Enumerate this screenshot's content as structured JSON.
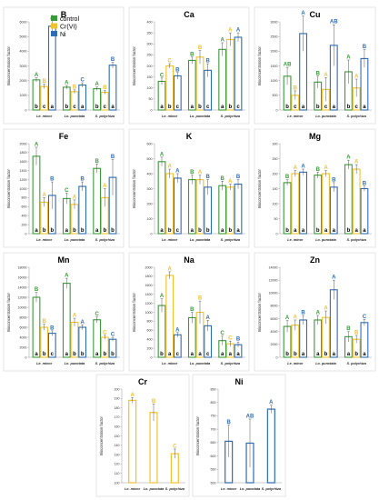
{
  "colors": {
    "control": "#3a9a3a",
    "cr": "#f2c12e",
    "ni": "#2e6db4"
  },
  "legend": [
    "control",
    "Cr(VI)",
    "Ni"
  ],
  "ylabel": "Bioconcentration factor",
  "categories": [
    "Le. minor",
    "Lo. punctata",
    "S. polyrhiza"
  ],
  "chart_data": [
    {
      "type": "bar",
      "title": "B",
      "ylim": [
        0,
        6000
      ],
      "yticks": [
        0,
        1000,
        2000,
        3000,
        4000,
        5000,
        6000
      ],
      "series": [
        {
          "name": "control",
          "values": [
            2050,
            1550,
            1450
          ],
          "errors": [
            150,
            120,
            120
          ],
          "labels": [
            "A",
            "A",
            "A"
          ],
          "base_labels": [
            "b",
            "b",
            "b"
          ]
        },
        {
          "name": "Cr(VI)",
          "values": [
            1600,
            1250,
            1200
          ],
          "errors": [
            150,
            120,
            120
          ],
          "labels": [
            "B",
            "B",
            "B"
          ],
          "base_labels": [
            "c",
            "c",
            "c"
          ]
        },
        {
          "name": "Ni",
          "values": [
            5700,
            1700,
            3050
          ],
          "errors": [
            400,
            150,
            200
          ],
          "labels": [
            "A",
            "C",
            "B"
          ],
          "base_labels": [
            "a",
            "a",
            "a"
          ]
        }
      ]
    },
    {
      "type": "bar",
      "title": "Ca",
      "ylim": [
        0,
        400
      ],
      "yticks": [
        0,
        50,
        100,
        150,
        200,
        250,
        300,
        350,
        400
      ],
      "series": [
        {
          "name": "control",
          "values": [
            130,
            225,
            275
          ],
          "errors": [
            15,
            15,
            30
          ],
          "labels": [
            "C",
            "B",
            "A"
          ],
          "base_labels": [
            "a",
            "a",
            "a"
          ]
        },
        {
          "name": "Cr(VI)",
          "values": [
            200,
            240,
            320
          ],
          "errors": [
            10,
            30,
            30
          ],
          "labels": [
            "C",
            "B",
            "A"
          ],
          "base_labels": [
            "b",
            "b",
            "b"
          ]
        },
        {
          "name": "Ni",
          "values": [
            155,
            180,
            330
          ],
          "errors": [
            15,
            30,
            20
          ],
          "labels": [
            "B",
            "B",
            "A"
          ],
          "base_labels": [
            "c",
            "c",
            "c"
          ]
        }
      ]
    },
    {
      "type": "bar",
      "title": "Cu",
      "ylim": [
        0,
        3000
      ],
      "yticks": [
        0,
        500,
        1000,
        1500,
        2000,
        2500,
        3000
      ],
      "series": [
        {
          "name": "control",
          "values": [
            1150,
            950,
            1300
          ],
          "errors": [
            300,
            200,
            400
          ],
          "labels": [
            "AB",
            "B",
            "A"
          ],
          "base_labels": [
            "b",
            "b",
            "b"
          ]
        },
        {
          "name": "Cr(VI)",
          "values": [
            500,
            700,
            750
          ],
          "errors": [
            150,
            400,
            300
          ],
          "labels": [
            "B",
            "A",
            "A"
          ],
          "base_labels": [
            "c",
            "c",
            "c"
          ]
        },
        {
          "name": "Ni",
          "values": [
            2600,
            2200,
            1750
          ],
          "errors": [
            600,
            700,
            300
          ],
          "labels": [
            "A",
            "AB",
            "B"
          ],
          "base_labels": [
            "a",
            "a",
            "a"
          ]
        }
      ]
    },
    {
      "type": "bar",
      "title": "Fe",
      "ylim": [
        0,
        2000
      ],
      "yticks": [
        0,
        200,
        400,
        600,
        800,
        1000,
        1200,
        1400,
        1600,
        1800,
        2000
      ],
      "series": [
        {
          "name": "control",
          "values": [
            1720,
            780,
            1450
          ],
          "errors": [
            200,
            120,
            100
          ],
          "labels": [
            "A",
            "C",
            "B"
          ],
          "base_labels": [
            "a",
            "a",
            "a"
          ]
        },
        {
          "name": "Cr(VI)",
          "values": [
            700,
            650,
            800
          ],
          "errors": [
            100,
            100,
            200
          ],
          "labels": [
            "A",
            "A",
            "A"
          ],
          "base_labels": [
            "b",
            "b",
            "b"
          ]
        },
        {
          "name": "Ni",
          "values": [
            850,
            1050,
            1250
          ],
          "errors": [
            300,
            100,
            400
          ],
          "labels": [
            "B",
            "B",
            "B"
          ],
          "base_labels": [
            "b",
            "b",
            "b"
          ]
        }
      ]
    },
    {
      "type": "bar",
      "title": "K",
      "ylim": [
        0,
        600
      ],
      "yticks": [
        0,
        100,
        200,
        300,
        400,
        500,
        600
      ],
      "series": [
        {
          "name": "control",
          "values": [
            480,
            360,
            320
          ],
          "errors": [
            30,
            30,
            30
          ],
          "labels": [
            "A",
            "B",
            "B"
          ],
          "base_labels": [
            "a",
            "a",
            "a"
          ]
        },
        {
          "name": "Cr(VI)",
          "values": [
            400,
            360,
            310
          ],
          "errors": [
            30,
            30,
            20
          ],
          "labels": [
            "A",
            "A",
            "A"
          ],
          "base_labels": [
            "b",
            "b",
            "b"
          ]
        },
        {
          "name": "Ni",
          "values": [
            370,
            310,
            330
          ],
          "errors": [
            30,
            50,
            30
          ],
          "labels": [
            "A",
            "B",
            "B"
          ],
          "base_labels": [
            "c",
            "b",
            "a"
          ]
        }
      ]
    },
    {
      "type": "bar",
      "title": "Mg",
      "ylim": [
        0,
        300
      ],
      "yticks": [
        0,
        50,
        100,
        150,
        200,
        250,
        300
      ],
      "series": [
        {
          "name": "control",
          "values": [
            170,
            195,
            230
          ],
          "errors": [
            10,
            10,
            15
          ],
          "labels": [
            "B",
            "B",
            "A"
          ],
          "base_labels": [
            "b",
            "b",
            "b"
          ]
        },
        {
          "name": "Cr(VI)",
          "values": [
            200,
            200,
            215
          ],
          "errors": [
            10,
            10,
            15
          ],
          "labels": [
            "A",
            "A",
            "A"
          ],
          "base_labels": [
            "a",
            "a",
            "a"
          ]
        },
        {
          "name": "Ni",
          "values": [
            205,
            155,
            150
          ],
          "errors": [
            10,
            15,
            8
          ],
          "labels": [
            "A",
            "B",
            "B"
          ],
          "base_labels": [
            "a",
            "a",
            "a"
          ]
        }
      ]
    },
    {
      "type": "bar",
      "title": "Mn",
      "ylim": [
        0,
        18000
      ],
      "yticks": [
        0,
        2000,
        4000,
        6000,
        8000,
        10000,
        12000,
        14000,
        16000,
        18000
      ],
      "series": [
        {
          "name": "control",
          "values": [
            12000,
            14800,
            7500
          ],
          "errors": [
            1000,
            1000,
            600
          ],
          "labels": [
            "B",
            "A",
            "C"
          ],
          "base_labels": [
            "a",
            "a",
            "a"
          ]
        },
        {
          "name": "Cr(VI)",
          "values": [
            6000,
            7000,
            4000
          ],
          "errors": [
            600,
            800,
            400
          ],
          "labels": [
            "B",
            "A",
            "C"
          ],
          "base_labels": [
            "b",
            "b",
            "b"
          ]
        },
        {
          "name": "Ni",
          "values": [
            4800,
            6000,
            3600
          ],
          "errors": [
            500,
            500,
            400
          ],
          "labels": [
            "B",
            "A",
            "C"
          ],
          "base_labels": [
            "c",
            "b",
            "b"
          ]
        }
      ]
    },
    {
      "type": "bar",
      "title": "Na",
      "ylim": [
        0,
        2000
      ],
      "yticks": [
        0,
        200,
        400,
        600,
        800,
        1000,
        1200,
        1400,
        1600,
        1800,
        2000
      ],
      "series": [
        {
          "name": "control",
          "values": [
            1150,
            880,
            370
          ],
          "errors": [
            150,
            120,
            100
          ],
          "labels": [
            "A",
            "B",
            "C"
          ],
          "base_labels": [
            "b",
            "a",
            "a"
          ]
        },
        {
          "name": "Cr(VI)",
          "values": [
            1820,
            1000,
            300
          ],
          "errors": [
            80,
            250,
            60
          ],
          "labels": [
            "A",
            "B",
            "C"
          ],
          "base_labels": [
            "a",
            "a",
            "a"
          ]
        },
        {
          "name": "Ni",
          "values": [
            500,
            700,
            280
          ],
          "errors": [
            50,
            120,
            60
          ],
          "labels": [
            "A",
            "A",
            "B"
          ],
          "base_labels": [
            "c",
            "c",
            "a"
          ]
        }
      ]
    },
    {
      "type": "bar",
      "title": "Zn",
      "ylim": [
        0,
        14000
      ],
      "yticks": [
        0,
        2000,
        4000,
        6000,
        8000,
        10000,
        12000,
        14000
      ],
      "series": [
        {
          "name": "control",
          "values": [
            4800,
            5800,
            3200
          ],
          "errors": [
            900,
            700,
            800
          ],
          "labels": [
            "A",
            "A",
            "B"
          ],
          "base_labels": [
            "b",
            "a",
            "a"
          ]
        },
        {
          "name": "Cr(VI)",
          "values": [
            5000,
            6200,
            2800
          ],
          "errors": [
            800,
            1000,
            600
          ],
          "labels": [
            "A",
            "A",
            "B"
          ],
          "base_labels": [
            "b",
            "b",
            "b"
          ]
        },
        {
          "name": "Ni",
          "values": [
            5800,
            10500,
            5400
          ],
          "errors": [
            700,
            1500,
            500
          ],
          "labels": [
            "B",
            "A",
            "C"
          ],
          "base_labels": [
            "a",
            "a",
            "a"
          ]
        }
      ]
    },
    {
      "type": "bar",
      "title": "Cr",
      "ylim": [
        100,
        200
      ],
      "yticks": [
        100,
        110,
        120,
        130,
        140,
        150,
        160,
        170,
        180,
        190,
        200
      ],
      "series": [
        {
          "name": "Cr(VI)",
          "values": [
            188,
            175,
            131
          ],
          "errors": [
            3,
            9,
            5
          ],
          "labels": [
            "A",
            "B",
            "C"
          ]
        }
      ]
    },
    {
      "type": "bar",
      "title": "Ni",
      "ylim": [
        500,
        850
      ],
      "yticks": [
        500,
        550,
        600,
        650,
        700,
        750,
        800,
        850
      ],
      "series": [
        {
          "name": "Ni",
          "values": [
            655,
            648,
            775
          ],
          "errors": [
            60,
            90,
            15
          ],
          "labels": [
            "B",
            "AB",
            "A"
          ]
        }
      ]
    }
  ]
}
